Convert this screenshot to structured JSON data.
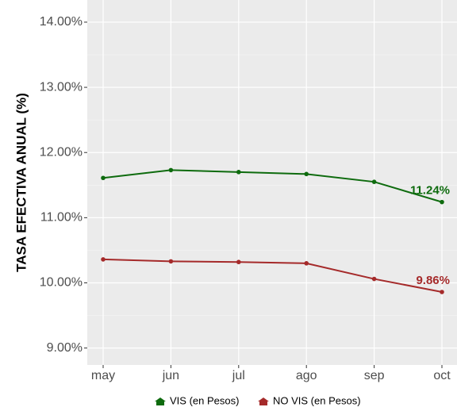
{
  "chart_data": {
    "type": "line",
    "y_label": "TASA EFECTIVA ANUAL (%)",
    "categories": [
      "may",
      "jun",
      "jul",
      "ago",
      "sep",
      "oct"
    ],
    "series": [
      {
        "name": "VIS (en Pesos)",
        "color": "#0e6b0e",
        "values": [
          11.61,
          11.73,
          11.7,
          11.67,
          11.55,
          11.24
        ],
        "value_labels": [
          null,
          null,
          null,
          null,
          null,
          "11.24%"
        ]
      },
      {
        "name": "NO VIS (en Pesos)",
        "color": "#a52a2a",
        "values": [
          10.36,
          10.33,
          10.32,
          10.3,
          10.06,
          9.86
        ],
        "value_labels": [
          null,
          null,
          null,
          null,
          null,
          "9.86%"
        ]
      }
    ],
    "ylim": [
      8.74,
      14.34
    ],
    "yticks": [
      {
        "value": 9,
        "label": "9.00%"
      },
      {
        "value": 10,
        "label": "10.00%"
      },
      {
        "value": 11,
        "label": "11.00%"
      },
      {
        "value": 12,
        "label": "12.00%"
      },
      {
        "value": 13,
        "label": "13.00%"
      },
      {
        "value": 14,
        "label": "14.00%"
      }
    ],
    "grid": true,
    "legend": "bottom"
  }
}
